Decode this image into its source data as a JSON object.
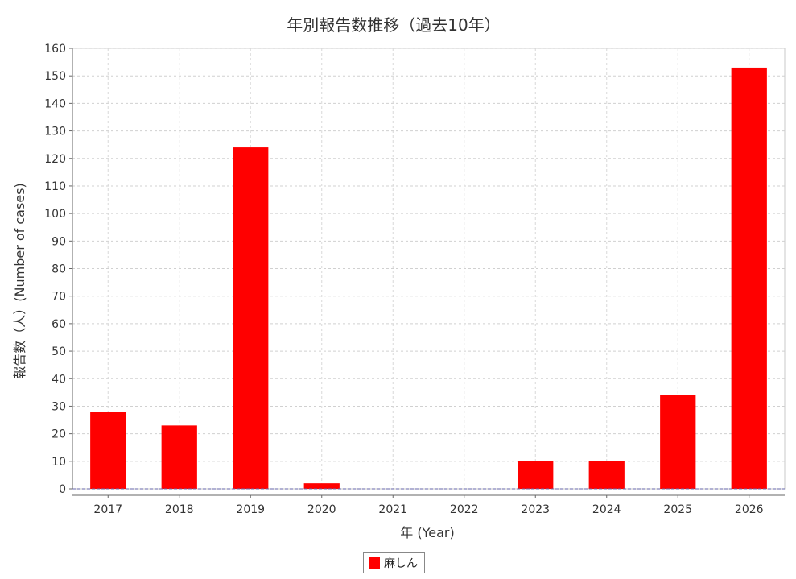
{
  "chart_data": {
    "type": "bar",
    "title": "年別報告数推移（過去10年）",
    "xlabel": "年 (Year)",
    "ylabel": "報告数（人）(Number of cases)",
    "categories": [
      "2017",
      "2018",
      "2019",
      "2020",
      "2021",
      "2022",
      "2023",
      "2024",
      "2025",
      "2026"
    ],
    "series": [
      {
        "name": "麻しん",
        "values": [
          28,
          23,
          124,
          2,
          0,
          0,
          10,
          10,
          34,
          153
        ],
        "color": "#ff0000"
      }
    ],
    "ylim": [
      0,
      160
    ],
    "yticks": [
      0,
      10,
      20,
      30,
      40,
      50,
      60,
      70,
      80,
      90,
      100,
      110,
      120,
      130,
      140,
      150,
      160
    ],
    "grid": true,
    "legend_position": "bottom-center"
  }
}
